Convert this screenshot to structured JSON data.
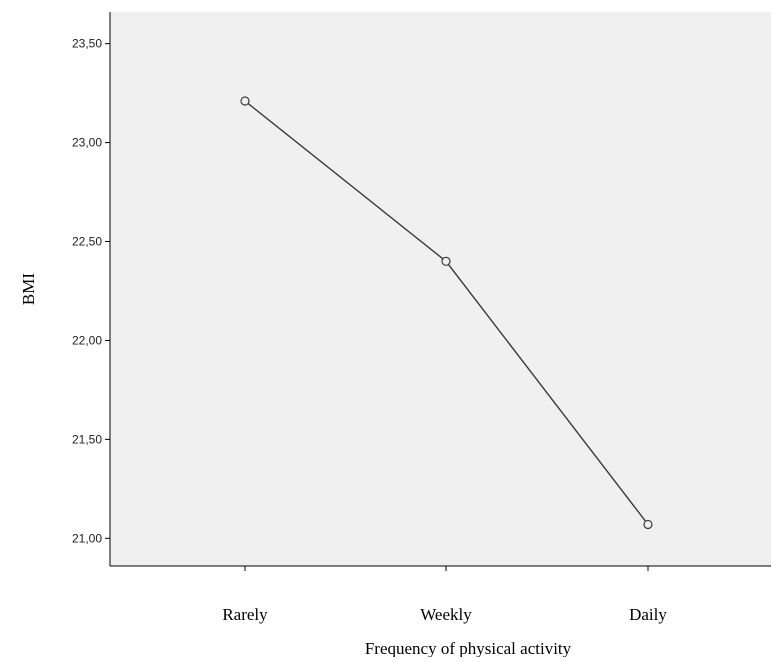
{
  "chart_data": {
    "type": "line",
    "title": "",
    "xlabel": "Frequency of physical activity",
    "ylabel": "BMI",
    "categories": [
      "Rarely",
      "Weekly",
      "Daily"
    ],
    "series": [
      {
        "values": [
          23.21,
          22.4,
          21.07
        ]
      }
    ],
    "yticks": [
      "21,00",
      "21,50",
      "22,00",
      "22,50",
      "23,00",
      "23,50"
    ],
    "ylim": [
      20.86,
      23.66
    ],
    "grid": false,
    "legend": "none",
    "colors": {
      "plot_background": "#f0f0f0",
      "line": "#3a3a3a",
      "axis": "#000000"
    }
  }
}
